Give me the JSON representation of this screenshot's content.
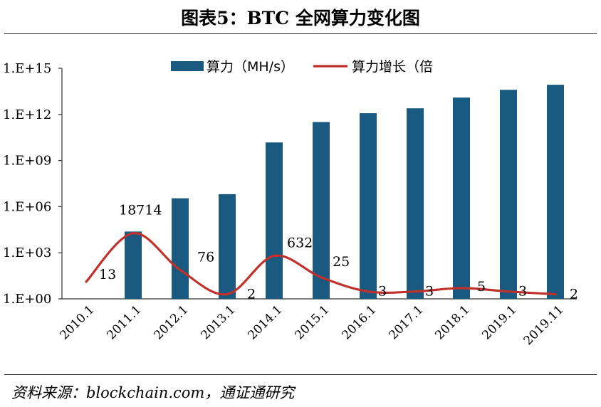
{
  "title": "图表5：BTC 全网算力变化图",
  "source": "资料来源：blockchain.com，通证通研究",
  "chart_data": {
    "type": "bar+line",
    "categories": [
      "2010.1",
      "2011.1",
      "2012.1",
      "2013.1",
      "2014.1",
      "2015.1",
      "2016.1",
      "2017.1",
      "2018.1",
      "2019.1",
      "2019.11"
    ],
    "y_scale": "log10",
    "ylim_exponent": [
      0,
      15
    ],
    "y_ticks": [
      {
        "exp": 0,
        "label": "1.E+00"
      },
      {
        "exp": 3,
        "label": "1.E+03"
      },
      {
        "exp": 6,
        "label": "1.E+06"
      },
      {
        "exp": 9,
        "label": "1.E+09"
      },
      {
        "exp": 12,
        "label": "1.E+12"
      },
      {
        "exp": 15,
        "label": "1.E+15"
      }
    ],
    "legend": {
      "placement": "top-center"
    },
    "series": [
      {
        "name": "算力（MH/s）",
        "kind": "bar",
        "color": "#1b5a80",
        "values": [
          0.22,
          24000.0,
          3500000.0,
          6500000.0,
          15000000000.0,
          320000000000.0,
          1200000000000.0,
          2500000000000.0,
          12500000000000.0,
          40000000000000.0,
          85000000000000.0
        ]
      },
      {
        "name": "算力增长（倍",
        "kind": "line",
        "color": "#c0312b",
        "values": [
          13,
          18714,
          76,
          2,
          632,
          25,
          3,
          3,
          5,
          3,
          2
        ],
        "labels": [
          "13",
          "18714",
          "76",
          "2",
          "632",
          "25",
          "3",
          "3",
          "5",
          "3",
          "2"
        ]
      }
    ]
  }
}
